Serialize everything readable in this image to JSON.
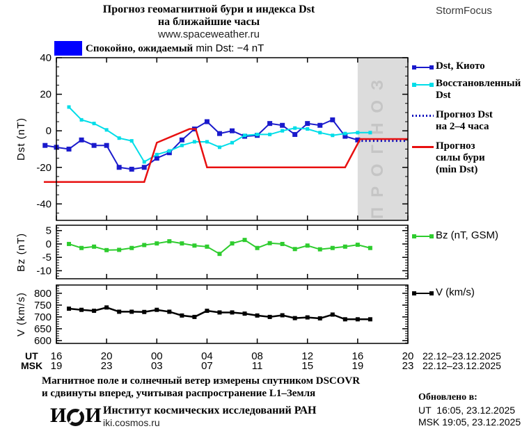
{
  "header": {
    "title_line1": "Прогноз геомагнитной бури и индекса Dst",
    "title_line2": "на ближайшие часы",
    "site": "www.spaceweather.ru",
    "brand": "StormFocus"
  },
  "status_legend": {
    "label_ru": "Спокойно, ожидаемый",
    "label_latin": " min Dst: −4 nT",
    "box_color": "#0000ff"
  },
  "dst_legend": [
    {
      "line1": "Dst, Киото"
    },
    {
      "line1": "Восстановленный",
      "line2": "Dst"
    },
    {
      "line1": "Прогноз Dst",
      "line2": "на 2–4 часа"
    },
    {
      "line1": "Прогноз",
      "line2": "силы бури",
      "line3": "(min Dst)"
    }
  ],
  "chart_data": {
    "type": "line",
    "title": "Прогноз геомагнитной бури и индекса Dst на ближайшие часы",
    "x_axis": {
      "hours_range": [
        0,
        28
      ],
      "tick_hours": [
        0,
        4,
        8,
        12,
        16,
        20,
        24,
        28
      ],
      "ut_prefix": "UT",
      "msk_prefix": "MSK",
      "ut_labels": [
        "16",
        "20",
        "00",
        "04",
        "08",
        "12",
        "16",
        "20"
      ],
      "msk_labels": [
        "19",
        "23",
        "03",
        "07",
        "11",
        "15",
        "19",
        "23"
      ],
      "ut_date": "22.12–23.12.2025",
      "msk_date": "22.12–23.12.2025"
    },
    "forecast_region": {
      "start_hour": 24,
      "label": "ПРОГНОЗ",
      "fill": "#dcdcdc",
      "text_color": "#c5c5c5"
    },
    "panels": [
      {
        "id": "dst",
        "ylabel": "Dst (nT)",
        "ylim": [
          -49,
          40
        ],
        "yticks": [
          40,
          20,
          0,
          -20,
          -40
        ],
        "minor": 5,
        "series": [
          {
            "sid": "kyoto",
            "name": "Dst, Киото",
            "color": "#1a1acc",
            "marker": 7,
            "width": 2,
            "x": [
              -0.9,
              0,
              1,
              2,
              3,
              4,
              5,
              6,
              7,
              8,
              9,
              10,
              11,
              12,
              13,
              14,
              15,
              16,
              17,
              18,
              19,
              20,
              21,
              22,
              23,
              24
            ],
            "y": [
              -8,
              -9,
              -10,
              -5,
              -8,
              -8,
              -20,
              -21,
              -20,
              -15,
              -12,
              -5,
              1,
              5,
              -1.5,
              0,
              -3,
              -2.5,
              4,
              3,
              -2,
              4,
              3,
              6,
              -3,
              -5
            ]
          },
          {
            "sid": "restored",
            "name": "Восстановленный Dst",
            "color": "#00dde8",
            "marker": 5,
            "width": 2,
            "x": [
              1,
              2,
              3,
              4,
              5,
              6,
              7,
              8,
              9,
              10,
              11,
              12,
              13,
              14,
              15,
              16,
              17,
              18,
              19,
              20,
              21,
              22,
              23,
              24,
              25
            ],
            "y": [
              13,
              6,
              4,
              0.5,
              -4,
              -5.5,
              -17,
              -13,
              -11,
              -8,
              -6,
              -6,
              -9,
              -6.5,
              -2.5,
              -2,
              -2,
              0,
              1.5,
              1,
              -1,
              -2.5,
              -1.5,
              -1,
              -1
            ]
          },
          {
            "sid": "forecast-dst",
            "name": "Прогноз Dst на 2–4 часа",
            "color": "#0000bb",
            "dotted": true,
            "width": 3,
            "x": [
              24,
              28
            ],
            "y": [
              -5.5,
              -5.5
            ]
          },
          {
            "sid": "storm-forecast",
            "name": "Прогноз силы бури (min Dst)",
            "color": "#e81010",
            "width": 2.5,
            "x": [
              -1,
              7,
              8,
              10.6,
              11.1,
              12,
              23,
              24.2,
              28
            ],
            "y": [
              -28,
              -28,
              -6.5,
              1,
              1,
              -20,
              -20,
              -4.5,
              -4.5
            ]
          }
        ]
      },
      {
        "id": "bz",
        "ylabel": "Bz (nT)",
        "ylim": [
          -13,
          7
        ],
        "yticks": [
          5,
          0,
          -5,
          -10
        ],
        "minor": 1,
        "series": [
          {
            "sid": "bz",
            "name": "Bz (nT, GSM)",
            "color": "#2ecc2e",
            "marker": 6,
            "width": 2,
            "x": [
              1,
              2,
              3,
              4,
              5,
              6,
              7,
              8,
              9,
              10,
              11,
              12,
              13,
              14,
              15,
              16,
              17,
              18,
              19,
              20,
              21,
              22,
              23,
              24,
              25
            ],
            "y": [
              0,
              -1.5,
              -1,
              -2.3,
              -2.2,
              -1.5,
              -0.4,
              0.2,
              1,
              0.2,
              -0.6,
              -1,
              -3.7,
              0.2,
              1.5,
              -1.5,
              0.3,
              0,
              -1.9,
              -0.6,
              -2,
              -1.5,
              -1,
              -0.3,
              -1.5
            ]
          }
        ]
      },
      {
        "id": "v",
        "ylabel": "V (km/s)",
        "ylim": [
          588,
          835
        ],
        "yticks": [
          800,
          750,
          700,
          650,
          600
        ],
        "minor": 10,
        "series": [
          {
            "sid": "v",
            "name": "V (km/s)",
            "color": "#000000",
            "marker": 6,
            "width": 2.5,
            "x": [
              1,
              2,
              3,
              4,
              5,
              6,
              7,
              8,
              9,
              10,
              11,
              12,
              13,
              14,
              15,
              16,
              17,
              18,
              19,
              20,
              21,
              22,
              23,
              24,
              25
            ],
            "y": [
              735,
              730,
              726,
              740,
              722,
              722,
              721,
              730,
              722,
              706,
              700,
              726,
              719,
              719,
              714,
              706,
              700,
              707,
              695,
              698,
              694,
              710,
              690,
              690,
              690
            ]
          }
        ]
      }
    ]
  },
  "footer": {
    "note_line1": "Магнитное поле и солнечный ветер измерены спутником DSCOVR",
    "note_line2": "и сдвинуты вперед, учитывая распространение L1–Земля",
    "logo_left": "И",
    "logo_right": "И",
    "institute": "Институт космических исследований РАН",
    "website": "iki.cosmos.ru"
  },
  "updated": {
    "title": "Обновлено в:",
    "ut": "UT  16:05, 23.12.2025",
    "msk": "MSK 19:05, 23.12.2025"
  }
}
